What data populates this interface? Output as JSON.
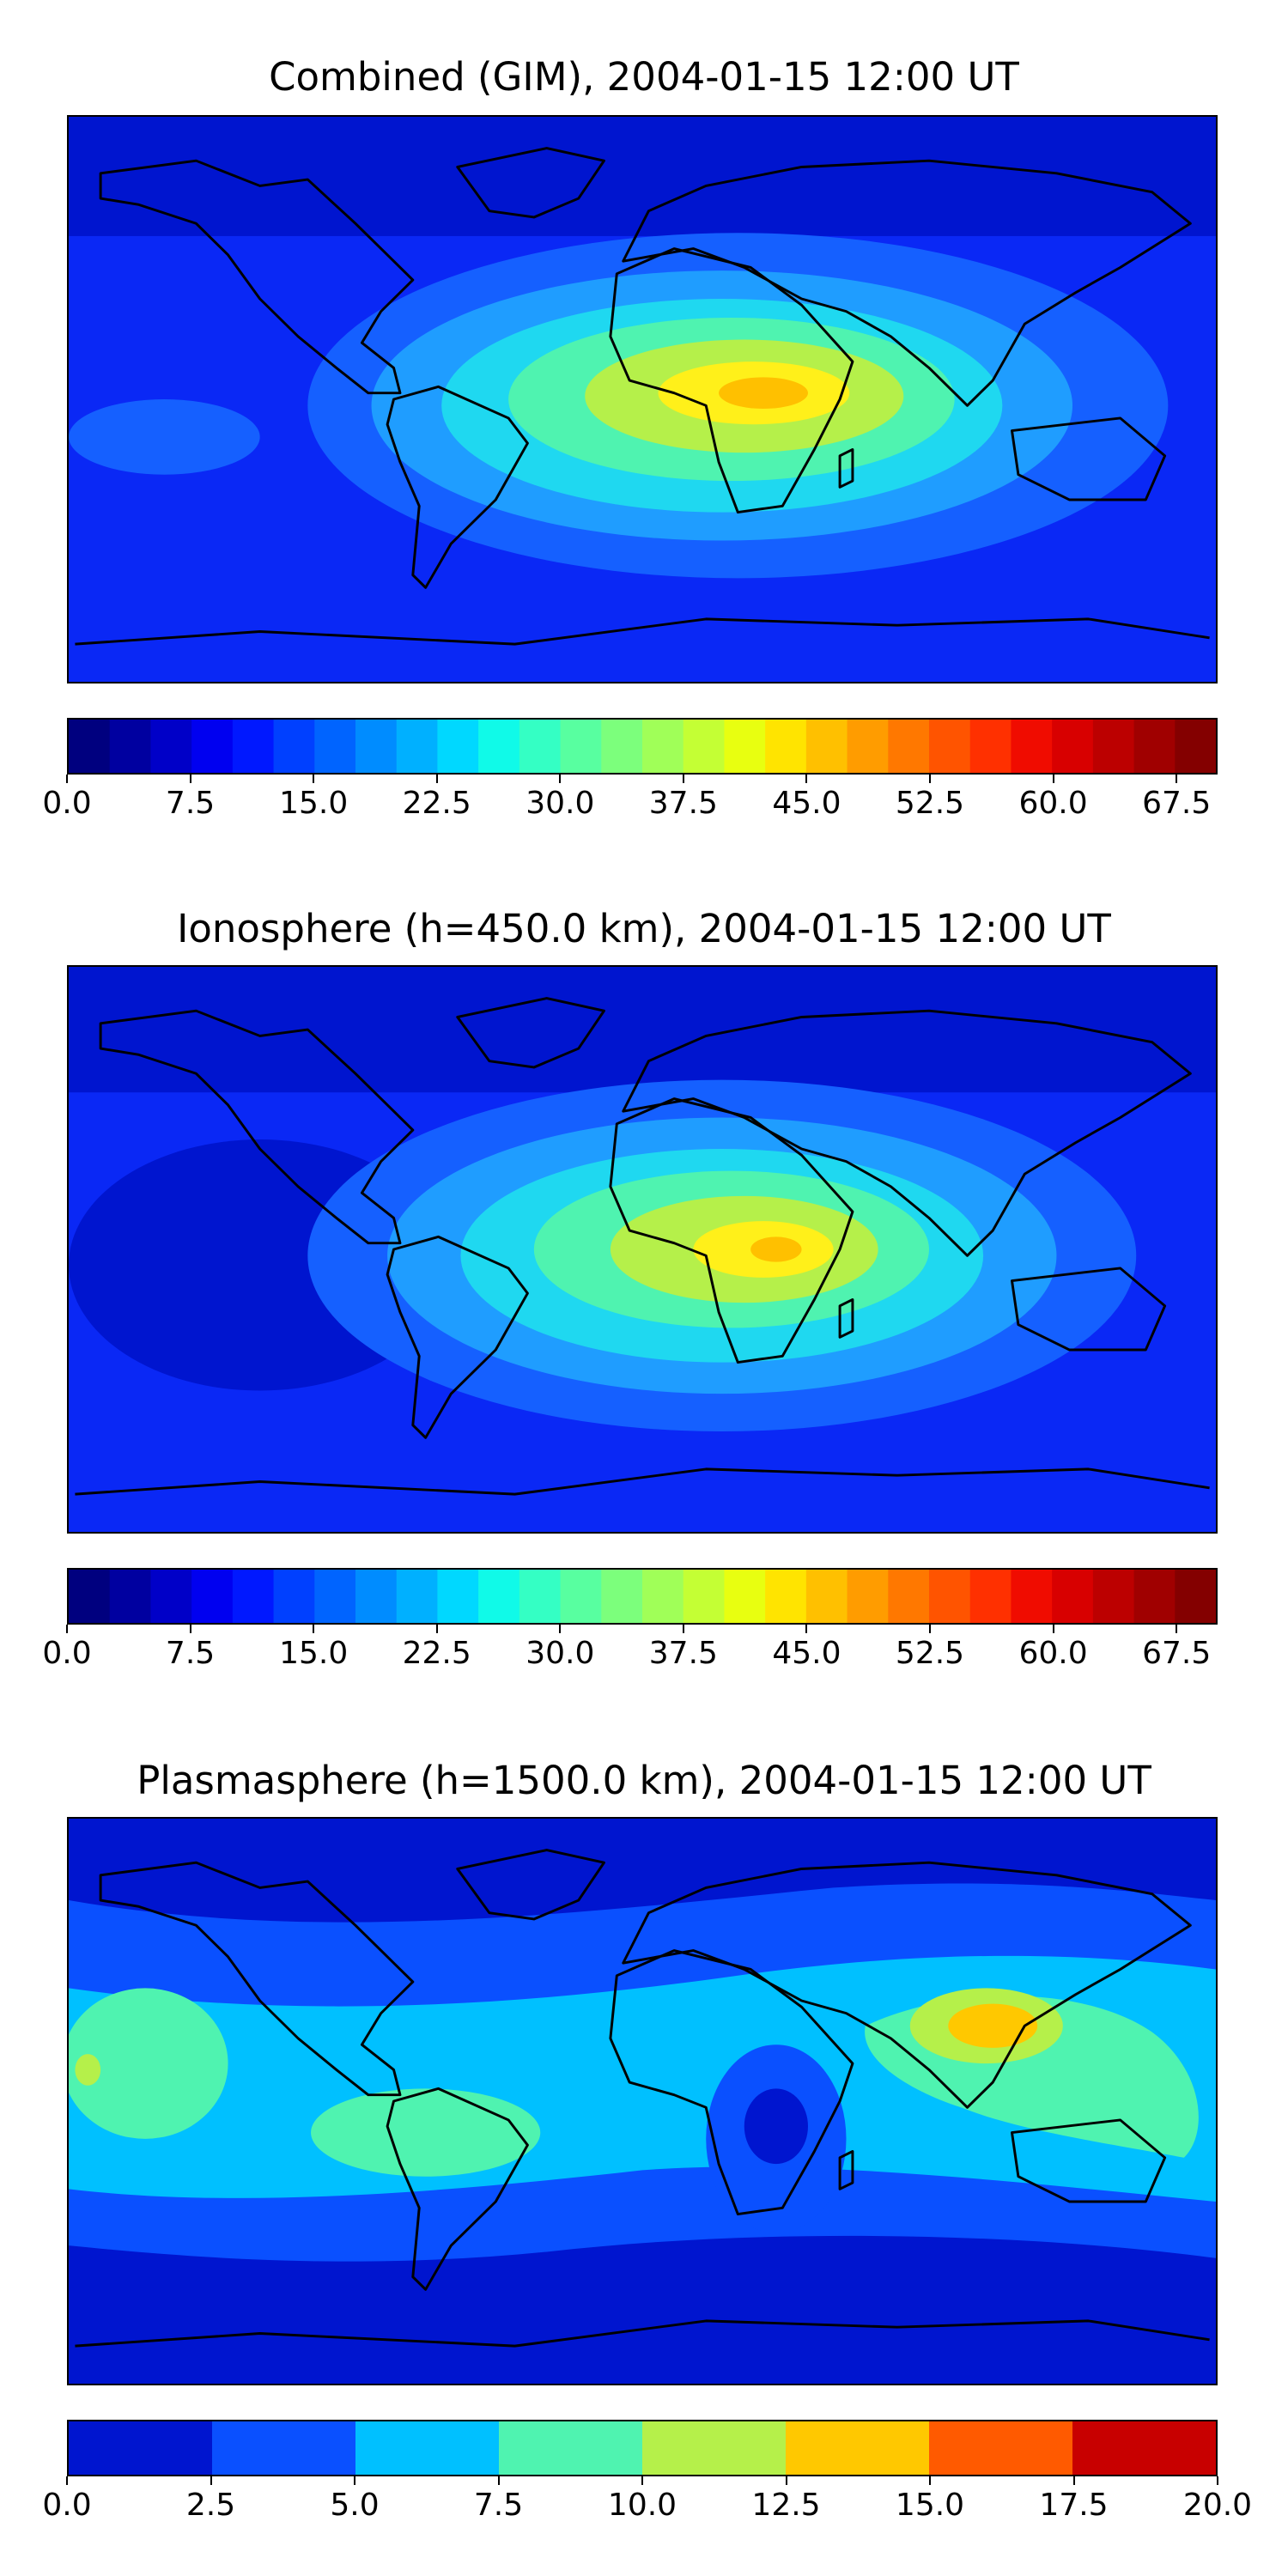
{
  "panels": [
    {
      "title": "Combined (GIM), 2004-01-15 12:00 UT",
      "colorbar": {
        "bounds": [
          0,
          70
        ],
        "step": 2.5,
        "tick_labels": [
          "0.0",
          "7.5",
          "15.0",
          "22.5",
          "30.0",
          "37.5",
          "45.0",
          "52.5",
          "60.0",
          "67.5"
        ],
        "tick_values": [
          0,
          7.5,
          15,
          22.5,
          30,
          37.5,
          45,
          52.5,
          60,
          67.5
        ]
      }
    },
    {
      "title": "Ionosphere  (h=450.0 km), 2004-01-15 12:00 UT",
      "colorbar": {
        "bounds": [
          0,
          70
        ],
        "step": 2.5,
        "tick_labels": [
          "0.0",
          "7.5",
          "15.0",
          "22.5",
          "30.0",
          "37.5",
          "45.0",
          "52.5",
          "60.0",
          "67.5"
        ],
        "tick_values": [
          0,
          7.5,
          15,
          22.5,
          30,
          37.5,
          45,
          52.5,
          60,
          67.5
        ]
      }
    },
    {
      "title": "Plasmasphere (h=1500.0 km), 2004-01-15 12:00 UT",
      "colorbar": {
        "bounds": [
          0,
          20
        ],
        "step": 2.5,
        "tick_labels": [
          "0.0",
          "2.5",
          "5.0",
          "7.5",
          "10.0",
          "12.5",
          "15.0",
          "17.5",
          "20.0"
        ],
        "tick_values": [
          0,
          2.5,
          5,
          7.5,
          10,
          12.5,
          15,
          17.5,
          20
        ]
      }
    }
  ],
  "colormap": "jet",
  "projection": "plate-carree"
}
